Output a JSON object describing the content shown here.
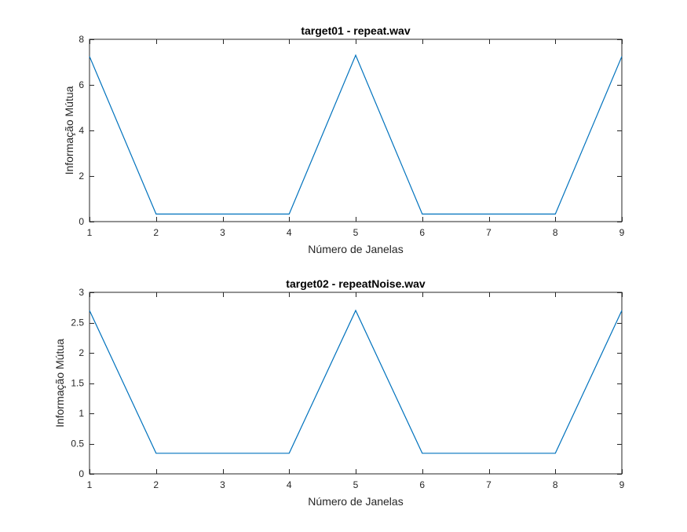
{
  "chart_data": [
    {
      "type": "line",
      "title": "target01 - repeat.wav",
      "xlabel": "Número de Janelas",
      "ylabel": "Informação Mútua",
      "xlim": [
        1,
        9
      ],
      "ylim": [
        0,
        8
      ],
      "xticks": [
        1,
        2,
        3,
        4,
        5,
        6,
        7,
        8,
        9
      ],
      "yticks": [
        0,
        2,
        4,
        6,
        8
      ],
      "ytick_labels": [
        "0",
        "2",
        "4",
        "6",
        "8"
      ],
      "grid": false,
      "series": [
        {
          "color": "#0072bd",
          "x": [
            1,
            2,
            3,
            4,
            5,
            6,
            7,
            8,
            9
          ],
          "y": [
            7.25,
            0.33,
            0.33,
            0.33,
            7.3,
            0.33,
            0.33,
            0.33,
            7.25
          ]
        }
      ]
    },
    {
      "type": "line",
      "title": "target02 - repeatNoise.wav",
      "xlabel": "Número de Janelas",
      "ylabel": "Informação Mútua",
      "xlim": [
        1,
        9
      ],
      "ylim": [
        0,
        3
      ],
      "xticks": [
        1,
        2,
        3,
        4,
        5,
        6,
        7,
        8,
        9
      ],
      "yticks": [
        0,
        0.5,
        1,
        1.5,
        2,
        2.5,
        3
      ],
      "ytick_labels": [
        "0",
        "0.5",
        "1",
        "1.5",
        "2",
        "2.5",
        "3"
      ],
      "grid": false,
      "series": [
        {
          "color": "#0072bd",
          "x": [
            1,
            2,
            3,
            4,
            5,
            6,
            7,
            8,
            9
          ],
          "y": [
            2.7,
            0.34,
            0.34,
            0.34,
            2.7,
            0.34,
            0.34,
            0.34,
            2.7
          ]
        }
      ]
    }
  ]
}
